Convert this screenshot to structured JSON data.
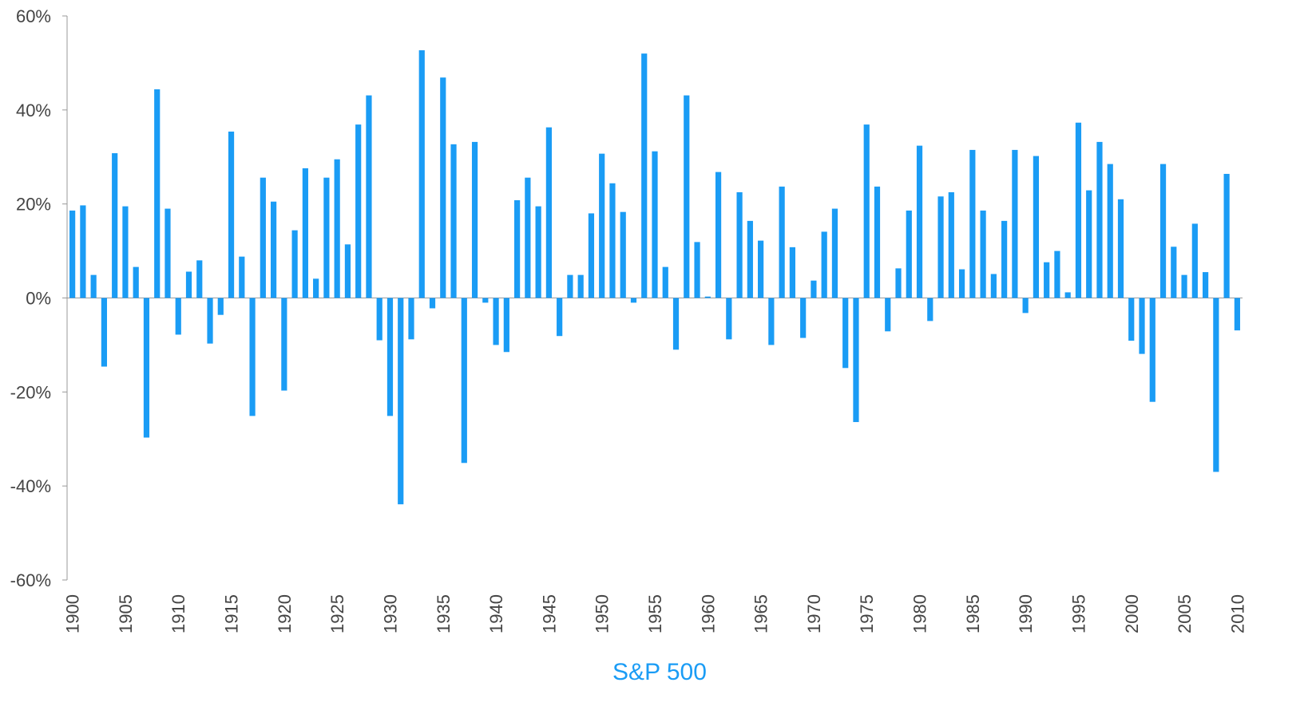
{
  "chart_data": {
    "type": "bar",
    "x_label": "S&P 500",
    "color": "#1a9cf5",
    "categories": [
      "1900",
      null,
      null,
      null,
      null,
      "1905",
      null,
      null,
      null,
      null,
      "1910",
      null,
      null,
      null,
      null,
      "1915",
      null,
      null,
      null,
      null,
      "1920",
      null,
      null,
      null,
      null,
      "1925",
      null,
      null,
      null,
      null,
      "1930",
      null,
      null,
      null,
      null,
      "1935",
      null,
      null,
      null,
      null,
      "1940",
      null,
      null,
      null,
      null,
      "1945",
      null,
      null,
      null,
      null,
      "1950",
      null,
      null,
      null,
      null,
      "1955",
      null,
      null,
      null,
      null,
      "1960",
      null,
      null,
      null,
      null,
      "1965",
      null,
      null,
      null,
      null,
      "1970",
      null,
      null,
      null,
      null,
      "1975",
      null,
      null,
      null,
      null,
      "1980",
      null,
      null,
      null,
      null,
      "1985",
      null,
      null,
      null,
      null,
      "1990",
      null,
      null,
      null,
      null,
      "1995",
      null,
      null,
      null,
      null,
      "2000",
      null,
      null,
      null,
      null,
      "2005",
      null,
      null,
      null,
      null,
      "2010"
    ],
    "values": [
      18.6,
      19.7,
      4.9,
      -14.6,
      30.8,
      19.5,
      6.6,
      -29.7,
      44.4,
      19.0,
      -7.8,
      5.6,
      8.0,
      -9.7,
      -3.6,
      35.4,
      8.8,
      -25.1,
      25.6,
      20.5,
      -19.7,
      14.4,
      27.6,
      4.1,
      25.6,
      29.5,
      11.4,
      36.9,
      43.1,
      -9.0,
      -25.1,
      -43.9,
      -8.8,
      52.7,
      -2.2,
      46.9,
      32.7,
      -35.1,
      33.2,
      -1.0,
      -10.0,
      -11.5,
      20.8,
      25.6,
      19.5,
      36.3,
      -8.1,
      4.9,
      4.9,
      18.0,
      30.7,
      24.4,
      18.3,
      -1.0,
      52.0,
      31.2,
      6.6,
      -11.0,
      43.1,
      11.9,
      0.3,
      26.8,
      -8.8,
      22.5,
      16.4,
      12.2,
      -10.0,
      23.7,
      10.8,
      -8.5,
      3.7,
      14.1,
      19.0,
      -14.9,
      -26.4,
      36.9,
      23.7,
      -7.1,
      6.3,
      18.6,
      32.4,
      -4.9,
      21.6,
      22.5,
      6.1,
      31.5,
      18.6,
      5.1,
      16.4,
      31.5,
      -3.2,
      30.2,
      7.6,
      10.0,
      1.2,
      37.3,
      22.9,
      33.2,
      28.5,
      21.0,
      -9.1,
      -11.9,
      -22.1,
      28.5,
      10.9,
      4.9,
      15.8,
      5.5,
      -37.0,
      26.4,
      -6.9
    ],
    "ylim": [
      -60,
      60
    ],
    "yticks": [
      {
        "value": -60,
        "label": "-60%"
      },
      {
        "value": -40,
        "label": "-40%"
      },
      {
        "value": -20,
        "label": "-20%"
      },
      {
        "value": 0,
        "label": "0%"
      },
      {
        "value": 20,
        "label": "20%"
      },
      {
        "value": 40,
        "label": "40%"
      },
      {
        "value": 60,
        "label": "60%"
      }
    ],
    "grid": false
  }
}
